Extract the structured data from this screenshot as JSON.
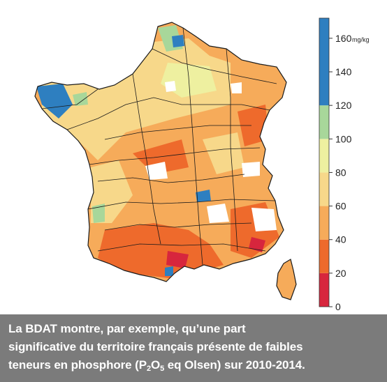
{
  "map": {
    "regions": "France métropolitaine et Corse",
    "colorbar": {
      "unit": "mg/kg",
      "ticks": [
        "0",
        "20",
        "40",
        "60",
        "80",
        "100",
        "120",
        "140",
        "160"
      ],
      "range": [
        0,
        172
      ],
      "classes": [
        {
          "from": 0,
          "to": 20,
          "color": "#d7263d"
        },
        {
          "from": 20,
          "to": 40,
          "color": "#ee6a2c"
        },
        {
          "from": 40,
          "to": 60,
          "color": "#f6ab5a"
        },
        {
          "from": 60,
          "to": 80,
          "color": "#f7d88a"
        },
        {
          "from": 80,
          "to": 100,
          "color": "#eef0a0"
        },
        {
          "from": 100,
          "to": 120,
          "color": "#a8d79a"
        },
        {
          "from": 120,
          "to": 172,
          "color": "#2e7fc0"
        }
      ]
    },
    "colors": {
      "department_border": "#1a1a1a",
      "no_data": "#ffffff"
    }
  },
  "caption": {
    "line1": "La BDAT montre, par exemple, qu’une part",
    "line2": "significative du territoire français présente de faibles",
    "line3_pre": "teneurs en phosphore (P",
    "line3_sub1": "2",
    "line3_mid": "O",
    "line3_sub2": "5",
    "line3_post": " eq Olsen) sur 2010-2014."
  }
}
